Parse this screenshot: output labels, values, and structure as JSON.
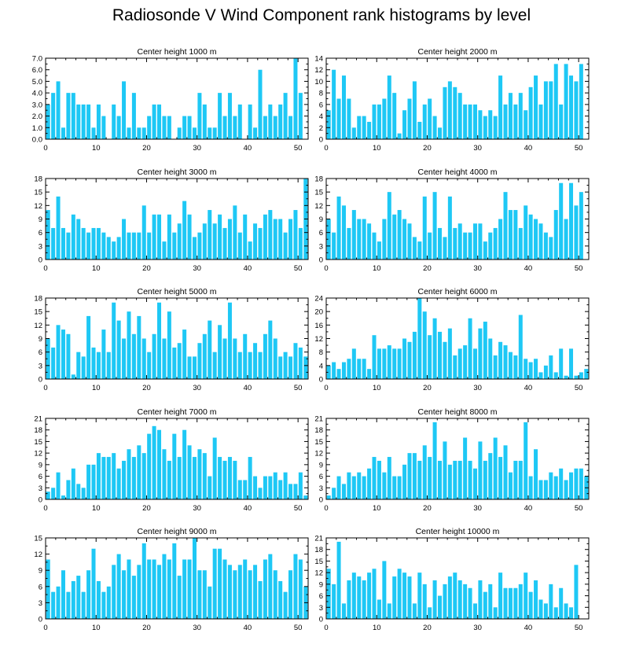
{
  "title": "Radiosonde V Wind Component rank histograms by level",
  "colors": {
    "bar": "#1ec8f5",
    "axis": "#000000",
    "background": "#ffffff"
  },
  "chart_data": [
    {
      "type": "bar",
      "title": "Center height 1000 m",
      "xlabel": "",
      "ylabel": "",
      "xlim": [
        0,
        52
      ],
      "ylim": [
        0,
        7
      ],
      "yticks": [
        0,
        1,
        2,
        3,
        4,
        5,
        6,
        7
      ],
      "ytick_labels": [
        "0.0",
        "1.0",
        "2.0",
        "3.0",
        "4.0",
        "5.0",
        "6.0",
        "7.0"
      ],
      "xticks": [
        0,
        10,
        20,
        30,
        40,
        50
      ],
      "categories": [
        0,
        1,
        2,
        3,
        4,
        5,
        6,
        7,
        8,
        9,
        10,
        11,
        12,
        13,
        14,
        15,
        16,
        17,
        18,
        19,
        20,
        21,
        22,
        23,
        24,
        25,
        26,
        27,
        28,
        29,
        30,
        31,
        32,
        33,
        34,
        35,
        36,
        37,
        38,
        39,
        40,
        41,
        42,
        43,
        44,
        45,
        46,
        47,
        48,
        49,
        50,
        51
      ],
      "values": [
        3,
        4,
        5,
        1,
        4,
        4,
        3,
        3,
        3,
        1,
        3,
        2,
        0,
        3,
        2,
        5,
        1,
        4,
        1,
        1,
        2,
        3,
        3,
        2,
        2,
        0,
        1,
        2,
        2,
        1,
        4,
        3,
        1,
        1,
        4,
        2,
        4,
        2,
        3,
        0,
        3,
        1,
        6,
        2,
        3,
        2,
        3,
        4,
        2,
        7,
        4,
        0
      ]
    },
    {
      "type": "bar",
      "title": "Center height 2000 m",
      "xlabel": "",
      "ylabel": "",
      "xlim": [
        0,
        52
      ],
      "ylim": [
        0,
        14
      ],
      "yticks": [
        0,
        2,
        4,
        6,
        8,
        10,
        12,
        14
      ],
      "ytick_labels": [
        "0",
        "2",
        "4",
        "6",
        "8",
        "10",
        "12",
        "14"
      ],
      "xticks": [
        0,
        10,
        20,
        30,
        40,
        50
      ],
      "categories": [
        0,
        1,
        2,
        3,
        4,
        5,
        6,
        7,
        8,
        9,
        10,
        11,
        12,
        13,
        14,
        15,
        16,
        17,
        18,
        19,
        20,
        21,
        22,
        23,
        24,
        25,
        26,
        27,
        28,
        29,
        30,
        31,
        32,
        33,
        34,
        35,
        36,
        37,
        38,
        39,
        40,
        41,
        42,
        43,
        44,
        45,
        46,
        47,
        48,
        49,
        50,
        51
      ],
      "values": [
        5,
        12,
        7,
        11,
        7,
        2,
        4,
        4,
        3,
        6,
        6,
        7,
        11,
        8,
        1,
        5,
        7,
        10,
        3,
        6,
        7,
        4,
        2,
        9,
        10,
        9,
        8,
        6,
        6,
        6,
        5,
        4,
        5,
        4,
        11,
        6,
        8,
        6,
        8,
        5,
        9,
        11,
        6,
        10,
        10,
        13,
        6,
        13,
        11,
        10,
        13,
        0
      ]
    },
    {
      "type": "bar",
      "title": "Center height 3000 m",
      "xlabel": "",
      "ylabel": "",
      "xlim": [
        0,
        52
      ],
      "ylim": [
        0,
        18
      ],
      "yticks": [
        0,
        3,
        6,
        9,
        12,
        15,
        18
      ],
      "ytick_labels": [
        "0",
        "3",
        "6",
        "9",
        "12",
        "15",
        "18"
      ],
      "xticks": [
        0,
        10,
        20,
        30,
        40,
        50
      ],
      "categories": [
        0,
        1,
        2,
        3,
        4,
        5,
        6,
        7,
        8,
        9,
        10,
        11,
        12,
        13,
        14,
        15,
        16,
        17,
        18,
        19,
        20,
        21,
        22,
        23,
        24,
        25,
        26,
        27,
        28,
        29,
        30,
        31,
        32,
        33,
        34,
        35,
        36,
        37,
        38,
        39,
        40,
        41,
        42,
        43,
        44,
        45,
        46,
        47,
        48,
        49,
        50,
        51
      ],
      "values": [
        11,
        7,
        14,
        7,
        6,
        10,
        9,
        7,
        6,
        7,
        7,
        6,
        5,
        4,
        5,
        9,
        6,
        6,
        6,
        12,
        6,
        10,
        10,
        4,
        10,
        6,
        8,
        13,
        10,
        5,
        6,
        8,
        11,
        8,
        10,
        7,
        9,
        12,
        6,
        10,
        4,
        8,
        7,
        10,
        11,
        9,
        9,
        6,
        9,
        11,
        7,
        18
      ]
    },
    {
      "type": "bar",
      "title": "Center height 4000 m",
      "xlabel": "",
      "ylabel": "",
      "xlim": [
        0,
        52
      ],
      "ylim": [
        0,
        18
      ],
      "yticks": [
        0,
        3,
        6,
        9,
        12,
        15,
        18
      ],
      "ytick_labels": [
        "0",
        "3",
        "6",
        "9",
        "12",
        "15",
        "18"
      ],
      "xticks": [
        0,
        10,
        20,
        30,
        40,
        50
      ],
      "categories": [
        0,
        1,
        2,
        3,
        4,
        5,
        6,
        7,
        8,
        9,
        10,
        11,
        12,
        13,
        14,
        15,
        16,
        17,
        18,
        19,
        20,
        21,
        22,
        23,
        24,
        25,
        26,
        27,
        28,
        29,
        30,
        31,
        32,
        33,
        34,
        35,
        36,
        37,
        38,
        39,
        40,
        41,
        42,
        43,
        44,
        45,
        46,
        47,
        48,
        49,
        50,
        51
      ],
      "values": [
        9,
        6,
        14,
        12,
        7,
        11,
        9,
        9,
        8,
        6,
        4,
        9,
        15,
        10,
        11,
        9,
        8,
        5,
        4,
        14,
        6,
        15,
        7,
        5,
        14,
        7,
        8,
        6,
        6,
        8,
        8,
        4,
        6,
        7,
        9,
        15,
        11,
        11,
        7,
        12,
        10,
        9,
        8,
        6,
        5,
        11,
        17,
        9,
        17,
        12,
        15,
        0
      ]
    },
    {
      "type": "bar",
      "title": "Center height 5000 m",
      "xlabel": "",
      "ylabel": "",
      "xlim": [
        0,
        52
      ],
      "ylim": [
        0,
        18
      ],
      "yticks": [
        0,
        3,
        6,
        9,
        12,
        15,
        18
      ],
      "ytick_labels": [
        "0",
        "3",
        "6",
        "9",
        "12",
        "15",
        "18"
      ],
      "xticks": [
        0,
        10,
        20,
        30,
        40,
        50
      ],
      "categories": [
        0,
        1,
        2,
        3,
        4,
        5,
        6,
        7,
        8,
        9,
        10,
        11,
        12,
        13,
        14,
        15,
        16,
        17,
        18,
        19,
        20,
        21,
        22,
        23,
        24,
        25,
        26,
        27,
        28,
        29,
        30,
        31,
        32,
        33,
        34,
        35,
        36,
        37,
        38,
        39,
        40,
        41,
        42,
        43,
        44,
        45,
        46,
        47,
        48,
        49,
        50,
        51
      ],
      "values": [
        9,
        7,
        12,
        11,
        10,
        1,
        6,
        5,
        14,
        7,
        6,
        11,
        6,
        17,
        13,
        9,
        15,
        10,
        14,
        9,
        6,
        10,
        17,
        9,
        15,
        7,
        8,
        11,
        5,
        5,
        8,
        10,
        13,
        6,
        12,
        9,
        17,
        9,
        6,
        10,
        6,
        8,
        6,
        10,
        13,
        9,
        5,
        6,
        5,
        8,
        7,
        5
      ]
    },
    {
      "type": "bar",
      "title": "Center height 6000 m",
      "xlabel": "",
      "ylabel": "",
      "xlim": [
        0,
        52
      ],
      "ylim": [
        0,
        24
      ],
      "yticks": [
        0,
        4,
        8,
        12,
        16,
        20,
        24
      ],
      "ytick_labels": [
        "0",
        "4",
        "8",
        "12",
        "16",
        "20",
        "24"
      ],
      "xticks": [
        0,
        10,
        20,
        30,
        40,
        50
      ],
      "categories": [
        0,
        1,
        2,
        3,
        4,
        5,
        6,
        7,
        8,
        9,
        10,
        11,
        12,
        13,
        14,
        15,
        16,
        17,
        18,
        19,
        20,
        21,
        22,
        23,
        24,
        25,
        26,
        27,
        28,
        29,
        30,
        31,
        32,
        33,
        34,
        35,
        36,
        37,
        38,
        39,
        40,
        41,
        42,
        43,
        44,
        45,
        46,
        47,
        48,
        49,
        50,
        51
      ],
      "values": [
        4,
        5,
        3,
        5,
        6,
        9,
        6,
        6,
        3,
        13,
        9,
        9,
        10,
        9,
        9,
        12,
        11,
        14,
        24,
        20,
        13,
        18,
        14,
        11,
        15,
        7,
        9,
        10,
        18,
        9,
        15,
        17,
        12,
        7,
        11,
        10,
        8,
        7,
        19,
        6,
        5,
        6,
        2,
        4,
        7,
        2,
        9,
        1,
        9,
        1,
        2,
        3
      ]
    },
    {
      "type": "bar",
      "title": "Center height 7000 m",
      "xlabel": "",
      "ylabel": "",
      "xlim": [
        0,
        52
      ],
      "ylim": [
        0,
        21
      ],
      "yticks": [
        0,
        3,
        6,
        9,
        12,
        15,
        18,
        21
      ],
      "ytick_labels": [
        "0",
        "3",
        "6",
        "9",
        "12",
        "15",
        "18",
        "21"
      ],
      "xticks": [
        0,
        10,
        20,
        30,
        40,
        50
      ],
      "categories": [
        0,
        1,
        2,
        3,
        4,
        5,
        6,
        7,
        8,
        9,
        10,
        11,
        12,
        13,
        14,
        15,
        16,
        17,
        18,
        19,
        20,
        21,
        22,
        23,
        24,
        25,
        26,
        27,
        28,
        29,
        30,
        31,
        32,
        33,
        34,
        35,
        36,
        37,
        38,
        39,
        40,
        41,
        42,
        43,
        44,
        45,
        46,
        47,
        48,
        49,
        50,
        51
      ],
      "values": [
        2,
        3,
        7,
        1,
        5,
        8,
        4,
        3,
        9,
        9,
        12,
        11,
        11,
        12,
        8,
        10,
        13,
        11,
        14,
        12,
        17,
        19,
        18,
        13,
        10,
        17,
        11,
        18,
        14,
        11,
        13,
        12,
        6,
        16,
        11,
        10,
        11,
        10,
        5,
        5,
        11,
        6,
        3,
        6,
        6,
        7,
        5,
        7,
        4,
        4,
        7,
        1
      ]
    },
    {
      "type": "bar",
      "title": "Center height 8000 m",
      "xlabel": "",
      "ylabel": "",
      "xlim": [
        0,
        52
      ],
      "ylim": [
        0,
        21
      ],
      "yticks": [
        0,
        3,
        6,
        9,
        12,
        15,
        18,
        21
      ],
      "ytick_labels": [
        "0",
        "3",
        "6",
        "9",
        "12",
        "15",
        "18",
        "21"
      ],
      "xticks": [
        0,
        10,
        20,
        30,
        40,
        50
      ],
      "categories": [
        0,
        1,
        2,
        3,
        4,
        5,
        6,
        7,
        8,
        9,
        10,
        11,
        12,
        13,
        14,
        15,
        16,
        17,
        18,
        19,
        20,
        21,
        22,
        23,
        24,
        25,
        26,
        27,
        28,
        29,
        30,
        31,
        32,
        33,
        34,
        35,
        36,
        37,
        38,
        39,
        40,
        41,
        42,
        43,
        44,
        45,
        46,
        47,
        48,
        49,
        50,
        51
      ],
      "values": [
        1,
        3,
        6,
        4,
        7,
        6,
        7,
        6,
        8,
        11,
        10,
        7,
        11,
        6,
        6,
        9,
        12,
        12,
        10,
        14,
        11,
        20,
        10,
        15,
        9,
        10,
        10,
        16,
        10,
        8,
        15,
        10,
        12,
        16,
        11,
        14,
        7,
        10,
        10,
        20,
        6,
        13,
        5,
        5,
        7,
        6,
        8,
        5,
        7,
        8,
        8,
        6
      ]
    },
    {
      "type": "bar",
      "title": "Center height 9000 m",
      "xlabel": "",
      "ylabel": "",
      "xlim": [
        0,
        52
      ],
      "ylim": [
        0,
        15
      ],
      "yticks": [
        0,
        3,
        6,
        9,
        12,
        15
      ],
      "ytick_labels": [
        "0",
        "3",
        "6",
        "9",
        "12",
        "15"
      ],
      "xticks": [
        0,
        10,
        20,
        30,
        40,
        50
      ],
      "categories": [
        0,
        1,
        2,
        3,
        4,
        5,
        6,
        7,
        8,
        9,
        10,
        11,
        12,
        13,
        14,
        15,
        16,
        17,
        18,
        19,
        20,
        21,
        22,
        23,
        24,
        25,
        26,
        27,
        28,
        29,
        30,
        31,
        32,
        33,
        34,
        35,
        36,
        37,
        38,
        39,
        40,
        41,
        42,
        43,
        44,
        45,
        46,
        47,
        48,
        49,
        50,
        51
      ],
      "values": [
        11,
        5,
        6,
        9,
        5,
        7,
        8,
        5,
        9,
        13,
        7,
        5,
        6,
        10,
        12,
        9,
        11,
        8,
        10,
        14,
        11,
        11,
        10,
        12,
        11,
        14,
        8,
        11,
        11,
        15,
        9,
        9,
        6,
        13,
        13,
        11,
        10,
        9,
        10,
        11,
        9,
        10,
        7,
        11,
        12,
        9,
        7,
        5,
        9,
        12,
        11,
        6
      ]
    },
    {
      "type": "bar",
      "title": "Center height 10000 m",
      "xlabel": "",
      "ylabel": "",
      "xlim": [
        0,
        52
      ],
      "ylim": [
        0,
        21
      ],
      "yticks": [
        0,
        3,
        6,
        9,
        12,
        15,
        18,
        21
      ],
      "ytick_labels": [
        "0",
        "3",
        "6",
        "9",
        "12",
        "15",
        "18",
        "21"
      ],
      "xticks": [
        0,
        10,
        20,
        30,
        40,
        50
      ],
      "categories": [
        0,
        1,
        2,
        3,
        4,
        5,
        6,
        7,
        8,
        9,
        10,
        11,
        12,
        13,
        14,
        15,
        16,
        17,
        18,
        19,
        20,
        21,
        22,
        23,
        24,
        25,
        26,
        27,
        28,
        29,
        30,
        31,
        32,
        33,
        34,
        35,
        36,
        37,
        38,
        39,
        40,
        41,
        42,
        43,
        44,
        45,
        46,
        47,
        48,
        49,
        50,
        51
      ],
      "values": [
        13,
        9,
        20,
        4,
        10,
        12,
        11,
        10,
        12,
        13,
        5,
        15,
        4,
        11,
        13,
        12,
        11,
        4,
        12,
        9,
        3,
        10,
        6,
        9,
        11,
        12,
        10,
        9,
        8,
        4,
        10,
        7,
        9,
        3,
        12,
        8,
        8,
        8,
        9,
        12,
        7,
        10,
        5,
        4,
        9,
        3,
        8,
        4,
        3,
        14,
        0,
        0
      ]
    }
  ]
}
